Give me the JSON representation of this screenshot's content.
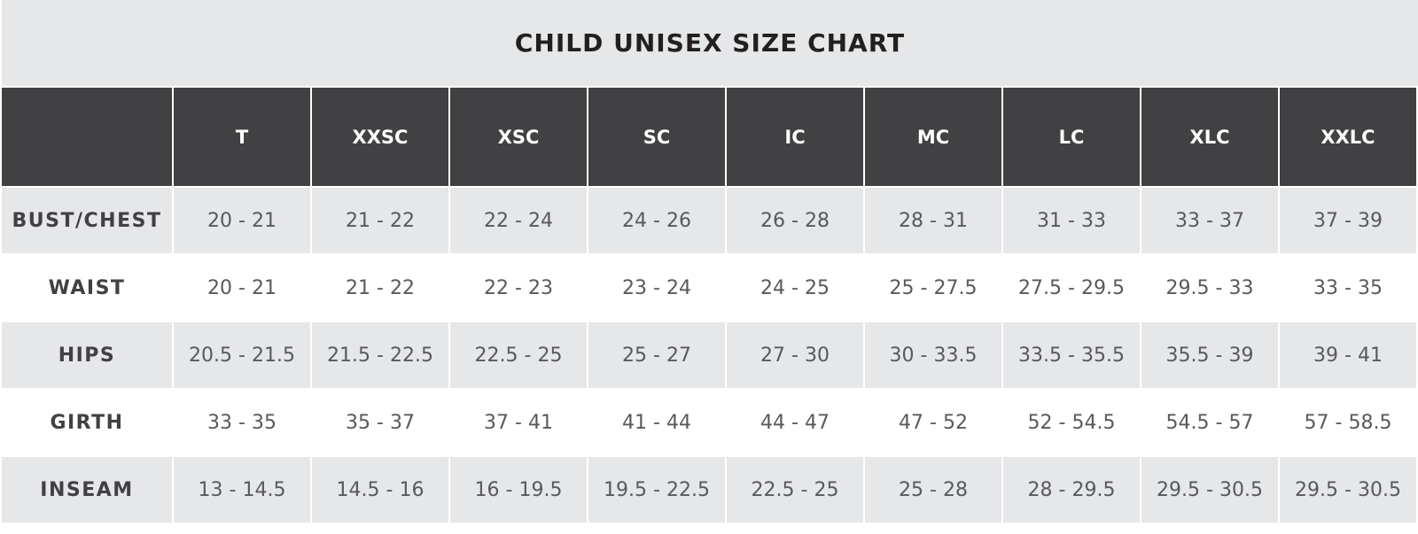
{
  "title": "CHILD UNISEX SIZE CHART",
  "table": {
    "columns": [
      "T",
      "XXSC",
      "XSC",
      "SC",
      "IC",
      "MC",
      "LC",
      "XLC",
      "XXLC"
    ],
    "rows": [
      {
        "label": "BUST/CHEST",
        "values": [
          "20 - 21",
          "21 - 22",
          "22 - 24",
          "24 - 26",
          "26 - 28",
          "28 - 31",
          "31 - 33",
          "33 - 37",
          "37 - 39"
        ]
      },
      {
        "label": "WAIST",
        "values": [
          "20 - 21",
          "21 - 22",
          "22 - 23",
          "23 - 24",
          "24 - 25",
          "25 - 27.5",
          "27.5 - 29.5",
          "29.5 - 33",
          "33 - 35"
        ]
      },
      {
        "label": "HIPS",
        "values": [
          "20.5 - 21.5",
          "21.5 - 22.5",
          "22.5 - 25",
          "25 - 27",
          "27 - 30",
          "30 - 33.5",
          "33.5 - 35.5",
          "35.5 - 39",
          "39 - 41"
        ]
      },
      {
        "label": "GIRTH",
        "values": [
          "33 - 35",
          "35 - 37",
          "37 - 41",
          "41 - 44",
          "44 - 47",
          "47 - 52",
          "52 - 54.5",
          "54.5 - 57",
          "57 - 58.5"
        ]
      },
      {
        "label": "INSEAM",
        "values": [
          "13 - 14.5",
          "14.5 - 16",
          "16 - 19.5",
          "19.5 - 22.5",
          "22.5 - 25",
          "25 - 28",
          "28 - 29.5",
          "29.5 - 30.5",
          "29.5 - 30.5"
        ]
      }
    ]
  }
}
